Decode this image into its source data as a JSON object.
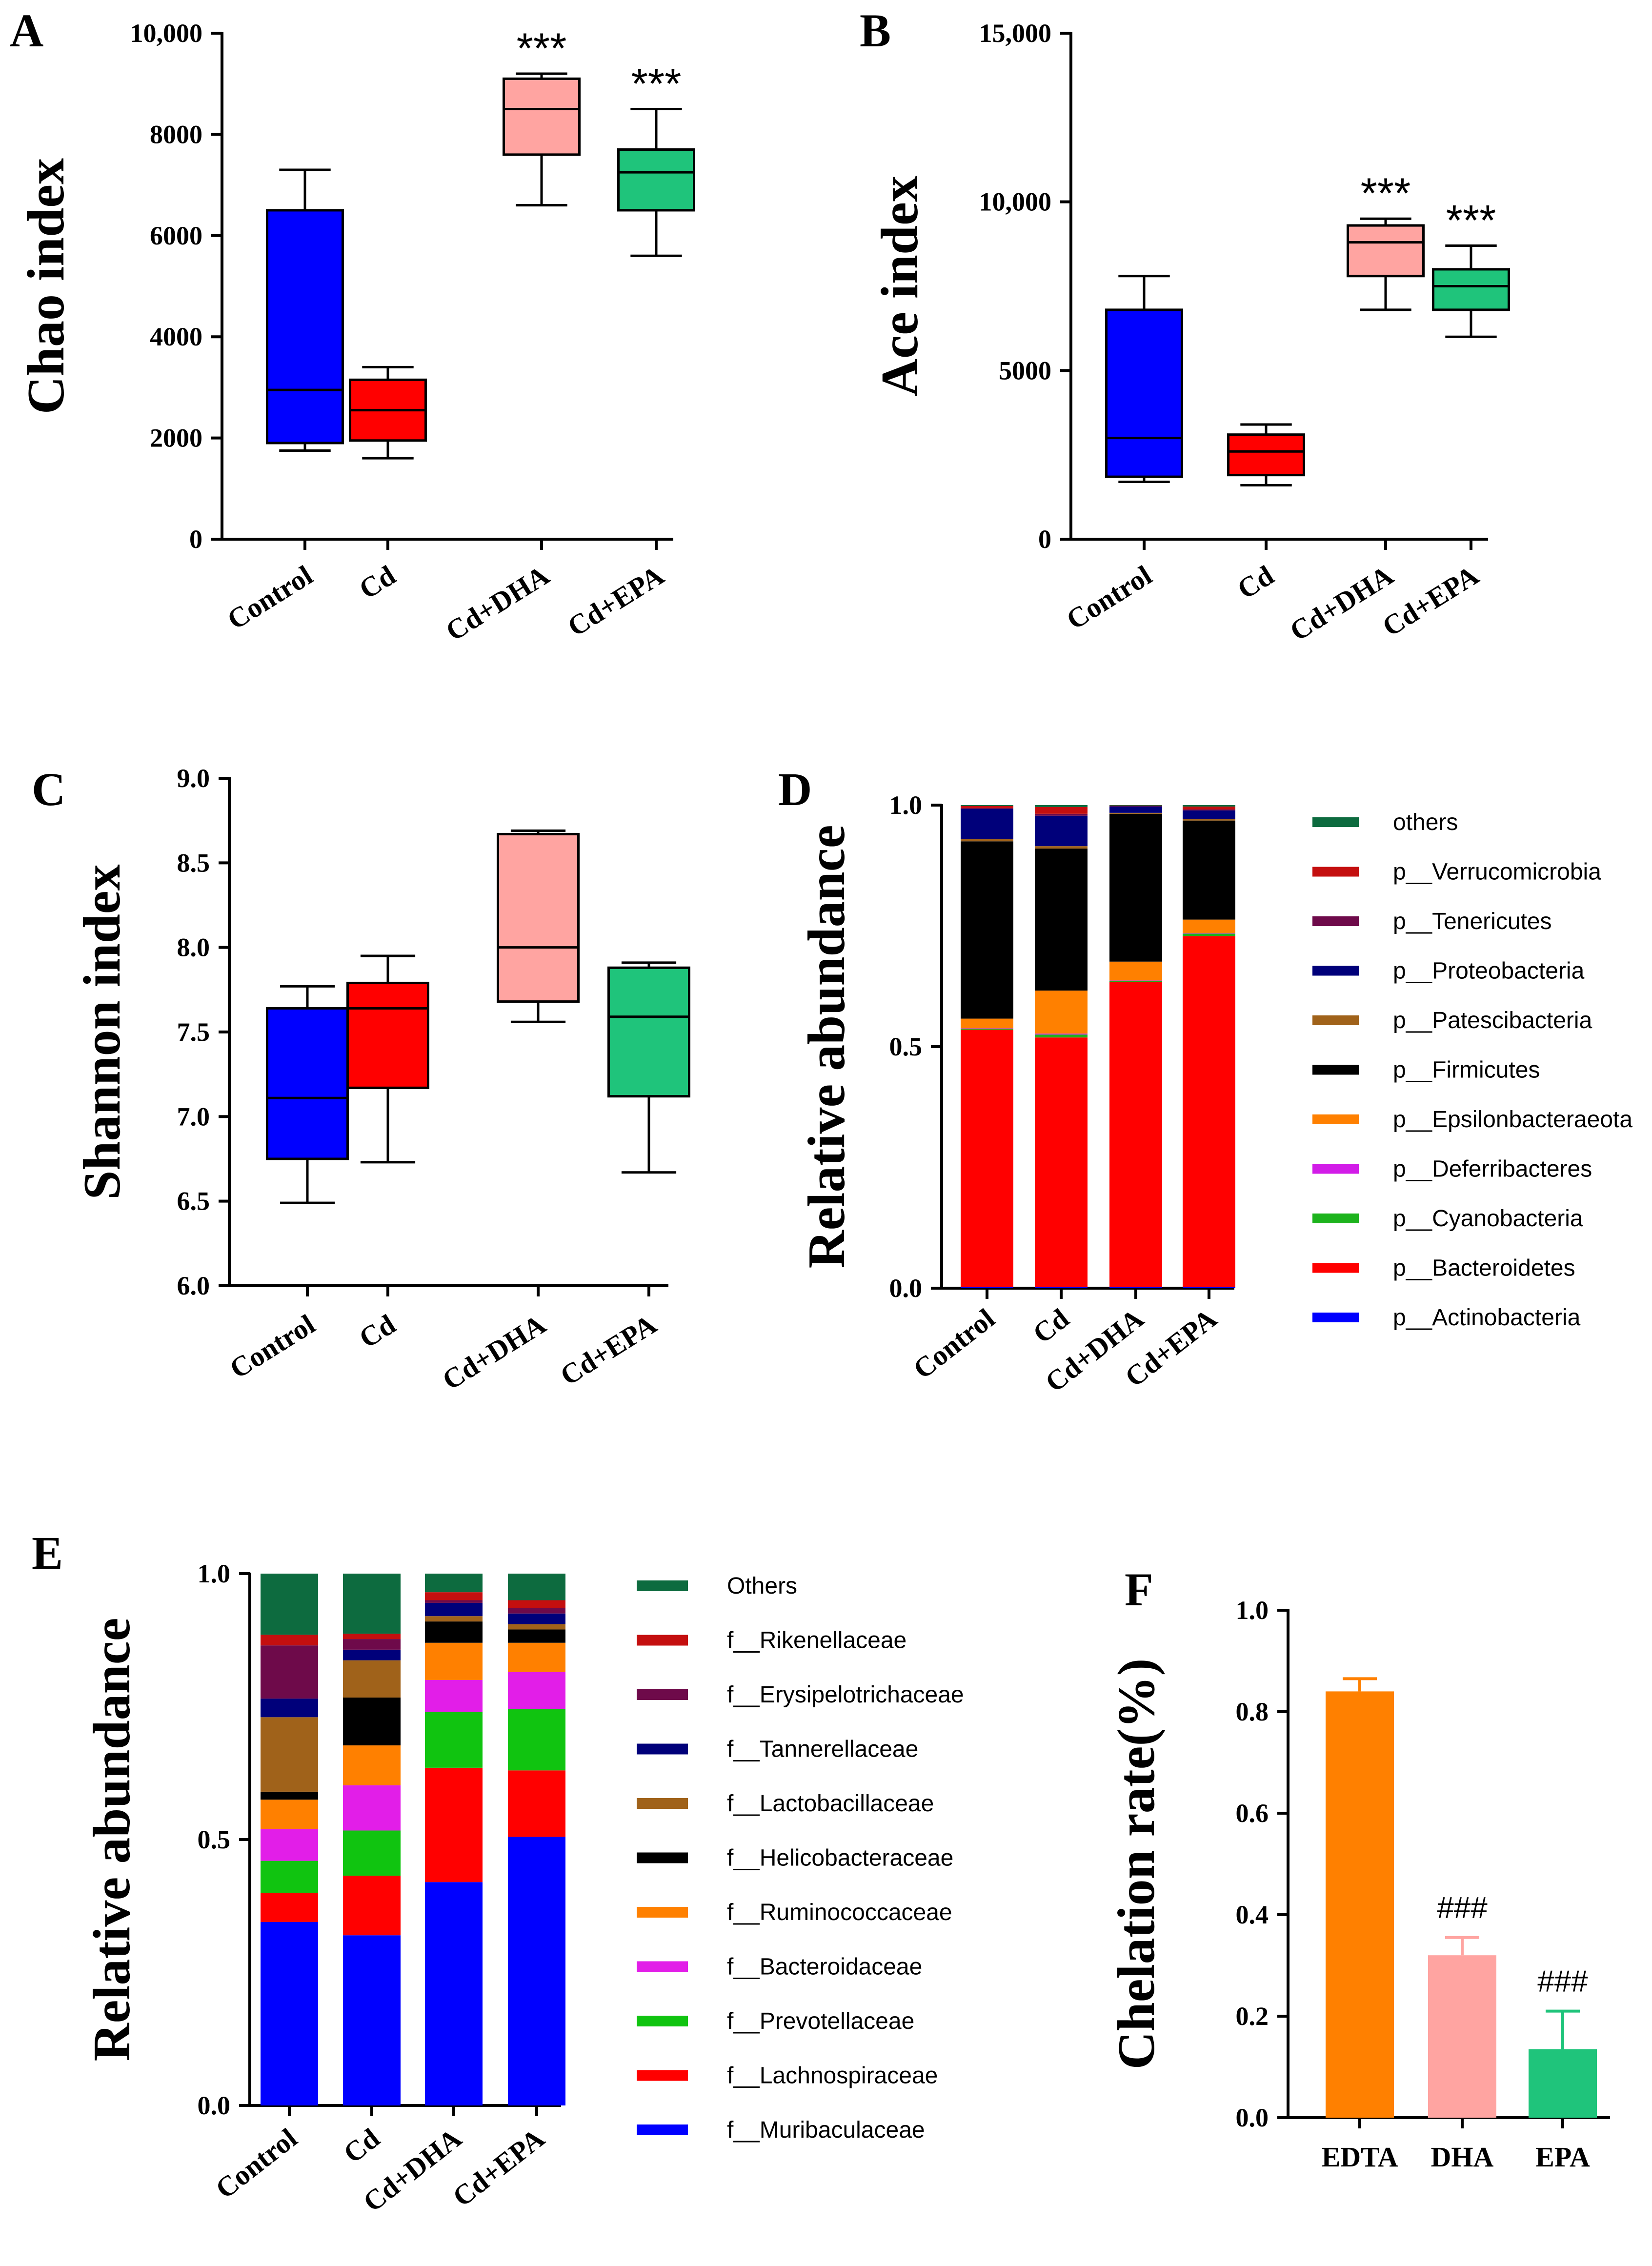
{
  "chart_data": [
    {
      "panel": "A",
      "type": "box",
      "ylabel": "Chao index",
      "ylim": [
        0,
        10000
      ],
      "yticks": [
        0,
        2000,
        4000,
        6000,
        8000,
        10000
      ],
      "ytick_labels": [
        "0",
        "2000",
        "4000",
        "6000",
        "8000",
        "10,000"
      ],
      "categories": [
        "Control",
        "Cd",
        "Cd+DHA",
        "Cd+EPA"
      ],
      "colors": [
        "#0000ff",
        "#ff0000",
        "#ffa4a1",
        "#1fc47b"
      ],
      "boxes": [
        {
          "min": 1750,
          "q1": 1900,
          "median": 2950,
          "q3": 6500,
          "max": 7300,
          "sig": ""
        },
        {
          "min": 1600,
          "q1": 1950,
          "median": 2550,
          "q3": 3150,
          "max": 3400,
          "sig": ""
        },
        {
          "min": 6600,
          "q1": 7600,
          "median": 8500,
          "q3": 9100,
          "max": 9200,
          "sig": "***"
        },
        {
          "min": 5600,
          "q1": 6500,
          "median": 7250,
          "q3": 7700,
          "max": 8500,
          "sig": "***"
        }
      ]
    },
    {
      "panel": "B",
      "type": "box",
      "ylabel": "Ace index",
      "ylim": [
        0,
        15000
      ],
      "yticks": [
        0,
        5000,
        10000,
        15000
      ],
      "ytick_labels": [
        "0",
        "5000",
        "10,000",
        "15,000"
      ],
      "categories": [
        "Control",
        "Cd",
        "Cd+DHA",
        "Cd+EPA"
      ],
      "colors": [
        "#0000ff",
        "#ff0000",
        "#ffa4a1",
        "#1fc47b"
      ],
      "boxes": [
        {
          "min": 1700,
          "q1": 1850,
          "median": 3000,
          "q3": 6800,
          "max": 7800,
          "sig": ""
        },
        {
          "min": 1600,
          "q1": 1900,
          "median": 2600,
          "q3": 3100,
          "max": 3400,
          "sig": ""
        },
        {
          "min": 6800,
          "q1": 7800,
          "median": 8800,
          "q3": 9300,
          "max": 9500,
          "sig": "***"
        },
        {
          "min": 6000,
          "q1": 6800,
          "median": 7500,
          "q3": 8000,
          "max": 8700,
          "sig": "***"
        }
      ]
    },
    {
      "panel": "C",
      "type": "box",
      "ylabel": "Shannon index",
      "ylim": [
        6.0,
        9.0
      ],
      "yticks": [
        6.0,
        6.5,
        7.0,
        7.5,
        8.0,
        8.5,
        9.0
      ],
      "ytick_labels": [
        "6.0",
        "6.5",
        "7.0",
        "7.5",
        "8.0",
        "8.5",
        "9.0"
      ],
      "categories": [
        "Control",
        "Cd",
        "Cd+DHA",
        "Cd+EPA"
      ],
      "colors": [
        "#0000ff",
        "#ff0000",
        "#ffa4a1",
        "#1fc47b"
      ],
      "boxes": [
        {
          "min": 6.49,
          "q1": 6.75,
          "median": 7.11,
          "q3": 7.64,
          "max": 7.77,
          "sig": ""
        },
        {
          "min": 6.73,
          "q1": 7.17,
          "median": 7.64,
          "q3": 7.79,
          "max": 7.95,
          "sig": ""
        },
        {
          "min": 7.56,
          "q1": 7.68,
          "median": 8.0,
          "q3": 8.67,
          "max": 8.69,
          "sig": ""
        },
        {
          "min": 6.67,
          "q1": 7.12,
          "median": 7.59,
          "q3": 7.88,
          "max": 7.91,
          "sig": ""
        }
      ]
    },
    {
      "panel": "D",
      "type": "stacked-bar",
      "ylabel": "Relative abundance",
      "ylim": [
        0,
        1
      ],
      "yticks": [
        0,
        0.5,
        1
      ],
      "ytick_labels": [
        "0.0",
        "0.5",
        "1.0"
      ],
      "categories": [
        "Control",
        "Cd",
        "Cd+DHA",
        "Cd+EPA"
      ],
      "series": [
        {
          "name": "p__Actinobacteria",
          "color": "#0000ff",
          "values": [
            0.002,
            0.002,
            0.002,
            0.002
          ]
        },
        {
          "name": "p__Bacteroidetes",
          "color": "#ff0000",
          "values": [
            0.533,
            0.517,
            0.632,
            0.727
          ]
        },
        {
          "name": "p__Cyanobacteria",
          "color": "#1db31d",
          "values": [
            0.002,
            0.006,
            0.002,
            0.005
          ]
        },
        {
          "name": "p__Deferribacteres",
          "color": "#d21ce8",
          "values": [
            0.001,
            0.002,
            0.001,
            0.001
          ]
        },
        {
          "name": "p__Epsilonbacteraeota",
          "color": "#ff8000",
          "values": [
            0.02,
            0.089,
            0.039,
            0.028
          ]
        },
        {
          "name": "p__Firmicutes",
          "color": "#000000",
          "values": [
            0.367,
            0.294,
            0.306,
            0.205
          ]
        },
        {
          "name": "p__Patescibacteria",
          "color": "#a0621a",
          "values": [
            0.005,
            0.005,
            0.002,
            0.003
          ]
        },
        {
          "name": "p__Proteobacteria",
          "color": "#00007a",
          "values": [
            0.062,
            0.063,
            0.013,
            0.018
          ]
        },
        {
          "name": "p__Tenericutes",
          "color": "#6e0a4a",
          "values": [
            0.002,
            0.004,
            0.001,
            0.002
          ]
        },
        {
          "name": "p__Verrucomicrobia",
          "color": "#c40f0f",
          "values": [
            0.004,
            0.014,
            0.001,
            0.006
          ]
        },
        {
          "name": "others",
          "color": "#0d6b3f",
          "values": [
            0.002,
            0.004,
            0.001,
            0.003
          ]
        }
      ]
    },
    {
      "panel": "E",
      "type": "stacked-bar",
      "ylabel": "Relative abundance",
      "ylim": [
        0,
        1
      ],
      "yticks": [
        0,
        0.5,
        1
      ],
      "ytick_labels": [
        "0.0",
        "0.5",
        "1.0"
      ],
      "categories": [
        "Control",
        "Cd",
        "Cd+DHA",
        "Cd+EPA"
      ],
      "series": [
        {
          "name": "f__Muribaculaceae",
          "color": "#0000ff",
          "values": [
            0.345,
            0.32,
            0.42,
            0.505
          ]
        },
        {
          "name": "f__Lachnospiraceae",
          "color": "#ff0000",
          "values": [
            0.055,
            0.112,
            0.215,
            0.125
          ]
        },
        {
          "name": "f__Prevotellaceae",
          "color": "#10c410",
          "values": [
            0.06,
            0.085,
            0.105,
            0.115
          ]
        },
        {
          "name": "f__Bacteroidaceae",
          "color": "#e21ee8",
          "values": [
            0.06,
            0.085,
            0.06,
            0.07
          ]
        },
        {
          "name": "f__Ruminococcaceae",
          "color": "#ff8000",
          "values": [
            0.055,
            0.075,
            0.07,
            0.055
          ]
        },
        {
          "name": "f__Helicobacteraceae",
          "color": "#000000",
          "values": [
            0.015,
            0.09,
            0.04,
            0.025
          ]
        },
        {
          "name": "f__Lactobacillaceae",
          "color": "#a0621a",
          "values": [
            0.14,
            0.07,
            0.01,
            0.01
          ]
        },
        {
          "name": "f__Tannerellaceae",
          "color": "#00007a",
          "values": [
            0.035,
            0.02,
            0.025,
            0.02
          ]
        },
        {
          "name": "f__Erysipelotrichaceae",
          "color": "#6e0a4a",
          "values": [
            0.1,
            0.02,
            0.005,
            0.01
          ]
        },
        {
          "name": "f__Rikenellaceae",
          "color": "#c40f0f",
          "values": [
            0.02,
            0.01,
            0.015,
            0.015
          ]
        },
        {
          "name": "Others",
          "color": "#0d6b3f",
          "values": [
            0.115,
            0.113,
            0.035,
            0.05
          ]
        }
      ]
    },
    {
      "panel": "F",
      "type": "bar",
      "ylabel": "Chelation rate(%)",
      "ylim": [
        0,
        1.0
      ],
      "yticks": [
        0,
        0.2,
        0.4,
        0.6,
        0.8,
        1.0
      ],
      "ytick_labels": [
        "0.0",
        "0.2",
        "0.4",
        "0.6",
        "0.8",
        "1.0"
      ],
      "categories": [
        "EDTA",
        "DHA",
        "EPA"
      ],
      "colors": [
        "#ff8000",
        "#ffa4a1",
        "#1fc47b"
      ],
      "values": [
        0.84,
        0.32,
        0.135
      ],
      "errors": [
        0.025,
        0.035,
        0.075
      ],
      "annotations": [
        "",
        "###",
        "###"
      ]
    }
  ]
}
